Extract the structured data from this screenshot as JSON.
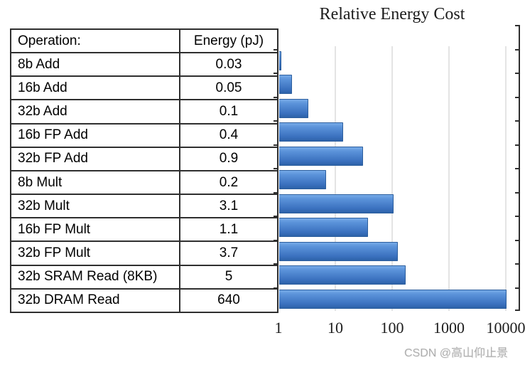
{
  "title": "Relative Energy Cost",
  "watermark": "CSDN @高山仰止景",
  "table": {
    "headers": [
      "Operation:",
      "Energy (pJ)"
    ],
    "rows": [
      {
        "operation": "8b Add",
        "energy": "0.03"
      },
      {
        "operation": "16b Add",
        "energy": "0.05"
      },
      {
        "operation": "32b Add",
        "energy": "0.1"
      },
      {
        "operation": "16b FP Add",
        "energy": "0.4"
      },
      {
        "operation": "32b FP Add",
        "energy": "0.9"
      },
      {
        "operation": "8b Mult",
        "energy": "0.2"
      },
      {
        "operation": "32b Mult",
        "energy": "3.1"
      },
      {
        "operation": "16b FP Mult",
        "energy": "1.1"
      },
      {
        "operation": "32b FP Mult",
        "energy": "3.7"
      },
      {
        "operation": "32b SRAM Read (8KB)",
        "energy": "5"
      },
      {
        "operation": "32b DRAM Read",
        "energy": "640"
      }
    ]
  },
  "chart_data": {
    "type": "bar",
    "orientation": "horizontal",
    "title": "Relative Energy Cost",
    "x_scale": "log",
    "xlim": [
      1,
      10000
    ],
    "x_tick_labels": [
      "1",
      "10",
      "100",
      "1000",
      "10000"
    ],
    "grid": "vertical-major",
    "legend": "none",
    "categories": [
      "8b Add",
      "16b Add",
      "32b Add",
      "16b FP Add",
      "32b FP Add",
      "8b Mult",
      "32b Mult",
      "16b FP Mult",
      "32b FP Mult",
      "32b SRAM Read (8KB)",
      "32b DRAM Read"
    ],
    "values": [
      1,
      1.7,
      3.3,
      13.3,
      30,
      6.7,
      103.3,
      36.7,
      123.3,
      166.7,
      21333
    ],
    "note": "Bar lengths are energy relative to 8b Add (0.03 pJ); 32b DRAM Read bar is clipped at axis max 10000",
    "bar_color_top": "#77aae7",
    "bar_color_bottom": "#2d62a8",
    "axis_color": "#2f2f2f",
    "gridline_color": "#e4e4e4"
  }
}
